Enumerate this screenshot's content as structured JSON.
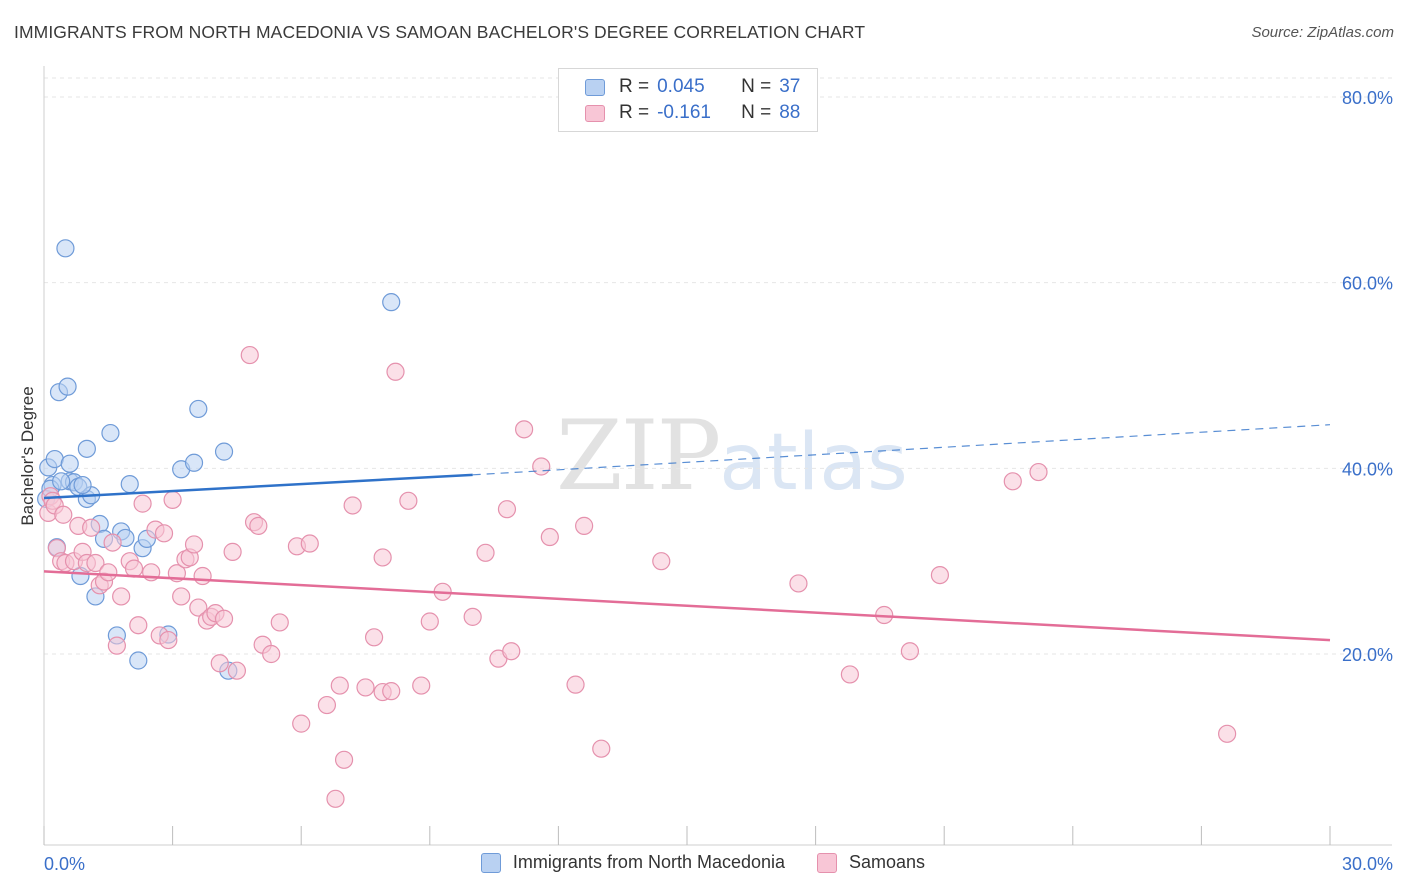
{
  "title": "IMMIGRANTS FROM NORTH MACEDONIA VS SAMOAN BACHELOR'S DEGREE CORRELATION CHART",
  "source": "Source: ZipAtlas.com",
  "watermark": {
    "zip": "ZIP",
    "atlas": "atlas"
  },
  "legend": {
    "rows": [
      {
        "r_label": "R =",
        "r_value": "0.045",
        "n_label": "N =",
        "n_value": "37"
      },
      {
        "r_label": "R =",
        "r_value": "-0.161",
        "n_label": "N =",
        "n_value": "88"
      }
    ]
  },
  "colors": {
    "blue_fill": "#b9d1f2",
    "blue_stroke": "#6f9bd8",
    "blue_line": "#2f72c9",
    "pink_fill": "#f8c6d6",
    "pink_stroke": "#e591ad",
    "pink_line": "#e36d97",
    "tick_label": "#3a6fc9",
    "grid": "#e6e6e6"
  },
  "chart_data": {
    "type": "scatter",
    "title": "IMMIGRANTS FROM NORTH MACEDONIA VS SAMOAN BACHELOR'S DEGREE CORRELATION CHART",
    "xlabel": "",
    "ylabel": "Bachelor's Degree",
    "xlim": [
      0,
      30
    ],
    "ylim": [
      0,
      82
    ],
    "x_tick_labels": [
      {
        "value": 0,
        "label": "0.0%"
      },
      {
        "value": 30,
        "label": "30.0%"
      }
    ],
    "y_tick_labels": [
      {
        "value": 20,
        "label": "20.0%"
      },
      {
        "value": 40,
        "label": "40.0%"
      },
      {
        "value": 60,
        "label": "60.0%"
      },
      {
        "value": 80,
        "label": "80.0%"
      }
    ],
    "x_minor_ticks": [
      0,
      3,
      6,
      9,
      12,
      15,
      18,
      21,
      24,
      27,
      30
    ],
    "series": [
      {
        "name": "Immigrants from North Macedonia",
        "color": "blue",
        "points": [
          [
            0.1,
            40.1
          ],
          [
            0.2,
            38.2
          ],
          [
            0.25,
            41.0
          ],
          [
            0.3,
            31.5
          ],
          [
            0.35,
            48.2
          ],
          [
            0.5,
            63.7
          ],
          [
            0.55,
            48.8
          ],
          [
            0.6,
            40.5
          ],
          [
            0.6,
            38.6
          ],
          [
            0.7,
            38.5
          ],
          [
            0.8,
            38.0
          ],
          [
            0.85,
            28.4
          ],
          [
            1.0,
            42.1
          ],
          [
            1.0,
            36.7
          ],
          [
            1.1,
            37.1
          ],
          [
            1.2,
            26.2
          ],
          [
            1.3,
            34.0
          ],
          [
            1.4,
            32.4
          ],
          [
            1.55,
            43.8
          ],
          [
            1.7,
            22.0
          ],
          [
            1.8,
            33.2
          ],
          [
            1.9,
            32.5
          ],
          [
            2.0,
            38.3
          ],
          [
            2.2,
            19.3
          ],
          [
            2.3,
            31.4
          ],
          [
            2.4,
            32.4
          ],
          [
            2.9,
            22.1
          ],
          [
            3.2,
            39.9
          ],
          [
            3.5,
            40.6
          ],
          [
            3.6,
            46.4
          ],
          [
            4.2,
            41.8
          ],
          [
            4.3,
            18.2
          ],
          [
            8.1,
            57.9
          ],
          [
            0.05,
            36.7
          ],
          [
            0.15,
            37.8
          ],
          [
            0.4,
            38.6
          ],
          [
            0.9,
            38.2
          ]
        ],
        "trend": {
          "solid": [
            [
              0,
              36.8
            ],
            [
              10,
              39.3
            ]
          ],
          "dashed": [
            [
              10,
              39.3
            ],
            [
              30,
              44.7
            ]
          ]
        }
      },
      {
        "name": "Samoans",
        "color": "pink",
        "points": [
          [
            0.1,
            35.2
          ],
          [
            0.15,
            37.0
          ],
          [
            0.2,
            36.5
          ],
          [
            0.3,
            31.4
          ],
          [
            0.4,
            30.0
          ],
          [
            0.5,
            29.8
          ],
          [
            0.7,
            30.0
          ],
          [
            0.8,
            33.8
          ],
          [
            0.9,
            31.0
          ],
          [
            1.0,
            29.8
          ],
          [
            1.1,
            33.6
          ],
          [
            1.2,
            29.8
          ],
          [
            1.3,
            27.4
          ],
          [
            1.4,
            27.8
          ],
          [
            1.5,
            28.8
          ],
          [
            1.7,
            20.9
          ],
          [
            1.8,
            26.2
          ],
          [
            2.0,
            30.0
          ],
          [
            2.2,
            23.1
          ],
          [
            2.3,
            36.2
          ],
          [
            2.5,
            28.8
          ],
          [
            2.6,
            33.4
          ],
          [
            2.7,
            22.0
          ],
          [
            2.8,
            33.0
          ],
          [
            2.9,
            21.5
          ],
          [
            3.0,
            36.6
          ],
          [
            3.1,
            28.7
          ],
          [
            3.2,
            26.2
          ],
          [
            3.3,
            30.2
          ],
          [
            3.4,
            30.4
          ],
          [
            3.5,
            31.8
          ],
          [
            3.6,
            25.0
          ],
          [
            3.7,
            28.4
          ],
          [
            3.8,
            23.6
          ],
          [
            3.9,
            24.0
          ],
          [
            4.0,
            24.4
          ],
          [
            4.1,
            19.0
          ],
          [
            4.2,
            23.8
          ],
          [
            4.4,
            31.0
          ],
          [
            4.5,
            18.2
          ],
          [
            4.8,
            52.2
          ],
          [
            4.9,
            34.2
          ],
          [
            5.0,
            33.8
          ],
          [
            5.1,
            21.0
          ],
          [
            5.3,
            20.0
          ],
          [
            5.5,
            23.4
          ],
          [
            5.9,
            31.6
          ],
          [
            6.0,
            12.5
          ],
          [
            6.2,
            31.9
          ],
          [
            6.6,
            14.5
          ],
          [
            6.8,
            4.4
          ],
          [
            6.9,
            16.6
          ],
          [
            7.0,
            8.6
          ],
          [
            7.2,
            36.0
          ],
          [
            7.5,
            16.4
          ],
          [
            7.7,
            21.8
          ],
          [
            7.9,
            30.4
          ],
          [
            7.9,
            15.9
          ],
          [
            8.1,
            16.0
          ],
          [
            8.2,
            50.4
          ],
          [
            8.5,
            36.5
          ],
          [
            8.8,
            16.6
          ],
          [
            9.0,
            23.5
          ],
          [
            9.3,
            26.7
          ],
          [
            10.0,
            24.0
          ],
          [
            10.3,
            30.9
          ],
          [
            10.6,
            19.5
          ],
          [
            10.8,
            35.6
          ],
          [
            10.9,
            20.3
          ],
          [
            11.2,
            44.2
          ],
          [
            11.6,
            40.2
          ],
          [
            11.8,
            32.6
          ],
          [
            12.4,
            16.7
          ],
          [
            12.6,
            33.8
          ],
          [
            13.0,
            9.8
          ],
          [
            14.4,
            30.0
          ],
          [
            17.6,
            27.6
          ],
          [
            18.8,
            17.8
          ],
          [
            19.6,
            24.2
          ],
          [
            20.2,
            20.3
          ],
          [
            20.9,
            28.5
          ],
          [
            22.6,
            38.6
          ],
          [
            23.2,
            39.6
          ],
          [
            27.6,
            11.4
          ],
          [
            0.25,
            36.0
          ],
          [
            0.45,
            35.0
          ],
          [
            1.6,
            32.0
          ],
          [
            2.1,
            29.2
          ]
        ],
        "trend": {
          "solid": [
            [
              0,
              28.9
            ],
            [
              30,
              21.5
            ]
          ]
        }
      }
    ]
  },
  "bottom_legend": [
    {
      "label": "Immigrants from North Macedonia",
      "color": "blue"
    },
    {
      "label": "Samoans",
      "color": "pink"
    }
  ]
}
